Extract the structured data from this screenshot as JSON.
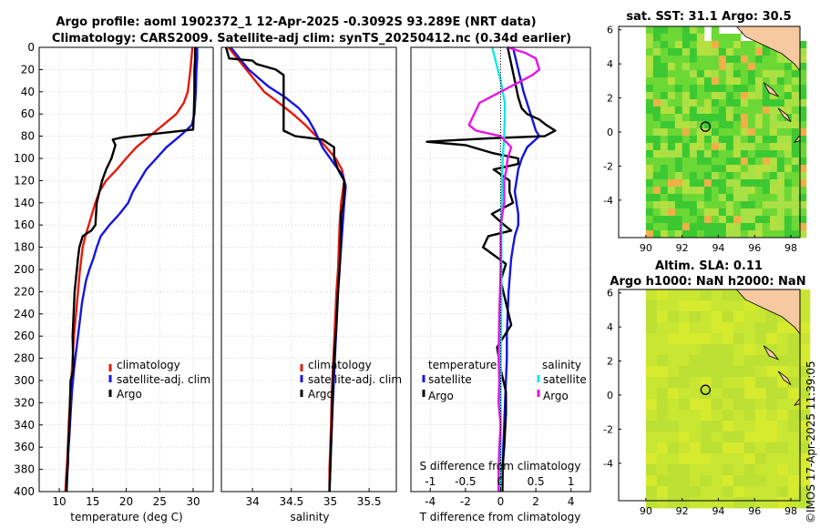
{
  "figure": {
    "title_line1": "Argo profile: aoml 1902372_1 12-Apr-2025 -0.3092S 93.289E (NRT data)",
    "title_line2": "Climatology: CARS2009. Satellite-adj clim: synTS_20250412.nc (0.34d earlier)",
    "credit": "©IMOS 17-Apr-2025 11:39:05"
  },
  "colors": {
    "climatology": "#e8190a",
    "satellite": "#1414e0",
    "argo": "#000000",
    "s_satellite": "#14e6e6",
    "s_argo": "#e614e6",
    "land": "#f7c9a0"
  },
  "chart_data": [
    {
      "type": "line",
      "id": "temperature",
      "xlabel": "temperature (deg C)",
      "ylabel": "",
      "xlim": [
        7,
        33
      ],
      "ylim": [
        400,
        0
      ],
      "xticks": [
        "10",
        "15",
        "20",
        "25",
        "30"
      ],
      "xtick_values": [
        10,
        15,
        20,
        25,
        30
      ],
      "yticks": [
        "0",
        "20",
        "40",
        "60",
        "80",
        "100",
        "120",
        "140",
        "160",
        "180",
        "200",
        "220",
        "240",
        "260",
        "280",
        "300",
        "320",
        "340",
        "360",
        "380",
        "400"
      ],
      "legend": [
        "climatology",
        "satellite-adj. clim",
        "Argo"
      ],
      "series": [
        {
          "name": "climatology",
          "color_key": "climatology",
          "x": [
            29.9,
            29.6,
            29.2,
            28.6,
            27.5,
            25.5,
            23.5,
            21.5,
            20.0,
            18.6,
            17.0,
            16.0,
            15.4,
            14.9,
            14.4,
            13.9,
            13.5,
            13.1,
            12.8,
            12.5,
            12.2,
            12.0,
            11.8,
            11.6,
            11.4,
            11.3,
            11.2,
            11.1,
            11.0,
            10.9
          ],
          "depth": [
            0,
            20,
            40,
            50,
            60,
            70,
            80,
            90,
            100,
            110,
            120,
            130,
            140,
            150,
            160,
            170,
            180,
            200,
            220,
            240,
            260,
            280,
            300,
            320,
            340,
            360,
            370,
            380,
            390,
            400
          ]
        },
        {
          "name": "satellite-adj. clim",
          "color_key": "satellite",
          "x": [
            30.6,
            30.6,
            30.5,
            30.4,
            30.2,
            29.8,
            28.0,
            26.0,
            24.5,
            23.0,
            22.0,
            21.0,
            20.3,
            19.0,
            17.5,
            16.2,
            15.6,
            15.1,
            14.5,
            14.0,
            13.4,
            13.0,
            12.6,
            12.2,
            11.9,
            11.7,
            11.5,
            11.3,
            11.2,
            11.1
          ],
          "depth": [
            0,
            10,
            20,
            40,
            60,
            70,
            80,
            90,
            100,
            110,
            120,
            130,
            140,
            150,
            160,
            170,
            180,
            190,
            200,
            210,
            230,
            250,
            270,
            290,
            310,
            330,
            350,
            370,
            385,
            400
          ]
        },
        {
          "name": "Argo",
          "color_key": "argo",
          "x": [
            30.3,
            30.3,
            30.2,
            30.2,
            30.1,
            30.0,
            24.0,
            19.5,
            18.0,
            18.4,
            17.8,
            17.0,
            16.4,
            15.6,
            15.4,
            14.8,
            13.5,
            13.0,
            12.8,
            12.3,
            12.0,
            12.1,
            11.7,
            11.6,
            11.5,
            11.3,
            11.3,
            11.1,
            11.1
          ],
          "depth": [
            0,
            10,
            20,
            40,
            60,
            74,
            78,
            81,
            83,
            88,
            100,
            110,
            120,
            140,
            160,
            165,
            170,
            180,
            190,
            220,
            260,
            290,
            300,
            320,
            345,
            360,
            375,
            390,
            400
          ]
        }
      ]
    },
    {
      "type": "line",
      "id": "salinity",
      "xlabel": "salinity",
      "ylabel": "",
      "xlim": [
        33.6,
        35.85
      ],
      "ylim": [
        400,
        0
      ],
      "xticks": [
        "34",
        "34.5",
        "35",
        "35.5"
      ],
      "xtick_values": [
        34,
        34.5,
        35,
        35.5
      ],
      "legend": [
        "climatology",
        "satellite-adj. clim",
        "Argo"
      ],
      "series": [
        {
          "name": "climatology",
          "color_key": "climatology",
          "x": [
            33.69,
            33.92,
            34.15,
            34.34,
            34.52,
            34.68,
            34.82,
            34.95,
            35.07,
            35.15,
            35.18,
            35.16,
            35.14,
            35.12,
            35.11,
            35.1,
            35.08,
            35.06,
            35.04,
            35.02,
            35.01,
            35.0,
            34.99,
            34.99
          ],
          "depth": [
            0,
            20,
            40,
            50,
            60,
            70,
            80,
            90,
            100,
            110,
            120,
            130,
            140,
            160,
            180,
            200,
            220,
            250,
            280,
            310,
            340,
            360,
            380,
            400
          ]
        },
        {
          "name": "satellite-adj. clim",
          "color_key": "satellite",
          "x": [
            33.72,
            33.95,
            34.2,
            34.42,
            34.6,
            34.72,
            34.8,
            34.9,
            35.05,
            35.16,
            35.2,
            35.18,
            35.16,
            35.14,
            35.12,
            35.1,
            35.08,
            35.06,
            35.04,
            35.02,
            35.01,
            35.0,
            34.99
          ],
          "depth": [
            0,
            20,
            35,
            45,
            55,
            65,
            75,
            90,
            105,
            115,
            125,
            140,
            160,
            180,
            200,
            220,
            250,
            280,
            310,
            340,
            360,
            380,
            400
          ]
        },
        {
          "name": "Argo",
          "color_key": "argo",
          "x": [
            33.66,
            33.7,
            34.0,
            34.05,
            34.3,
            34.4,
            34.4,
            34.4,
            34.4,
            34.55,
            34.9,
            35.05,
            35.05,
            35.1,
            35.18,
            35.18,
            35.17,
            35.14,
            35.14,
            35.13,
            35.12,
            35.1,
            35.08,
            35.05,
            35.03,
            35.02,
            35.01,
            35.0,
            34.99
          ],
          "depth": [
            0,
            10,
            12,
            15,
            20,
            25,
            40,
            60,
            75,
            80,
            83,
            90,
            100,
            110,
            120,
            125,
            140,
            150,
            160,
            180,
            200,
            220,
            250,
            280,
            310,
            340,
            360,
            380,
            400
          ]
        }
      ]
    },
    {
      "type": "line",
      "id": "difference",
      "xlabel": "T difference from climatology",
      "xlabel_top": "S difference from climatology",
      "xlim": [
        -5.1,
        5.1
      ],
      "ylim": [
        400,
        0
      ],
      "xticks": [
        "-4",
        "-2",
        "0",
        "2",
        "4"
      ],
      "xtick_values": [
        -4,
        -2,
        0,
        2,
        4
      ],
      "xticks_top": [
        "-1",
        "-0.5",
        "0",
        "0.5",
        "1"
      ],
      "xtick_top_values": [
        -1,
        -0.5,
        0,
        0.5,
        1
      ],
      "s_scale": 4,
      "legend_left_title": "temperature",
      "legend_left": [
        "satellite",
        "Argo"
      ],
      "legend_right_title": "salinity",
      "legend_right": [
        "satellite",
        "Argo"
      ],
      "series": [
        {
          "name": "T satellite",
          "color_key": "satellite",
          "x": [
            0.7,
            1.0,
            1.3,
            1.6,
            1.8,
            2.0,
            2.2,
            1.5,
            1.2,
            1.0,
            0.9,
            0.8,
            0.9,
            1.0,
            1.0,
            0.8,
            0.7,
            0.6,
            0.55,
            0.5,
            0.45,
            0.4,
            0.35,
            0.35,
            0.3,
            0.25,
            0.2,
            0.15,
            0.12,
            0.1
          ],
          "depth": [
            0,
            20,
            40,
            55,
            65,
            75,
            80,
            90,
            100,
            110,
            120,
            130,
            140,
            150,
            160,
            170,
            180,
            190,
            200,
            210,
            220,
            240,
            260,
            280,
            300,
            320,
            340,
            360,
            380,
            400
          ]
        },
        {
          "name": "T Argo",
          "color_key": "argo",
          "x": [
            0.4,
            0.6,
            0.8,
            1.0,
            1.2,
            1.5,
            2.2,
            2.6,
            3.1,
            2.5,
            -0.7,
            -4.2,
            -2.0,
            -0.5,
            1.0,
            1.0,
            -0.4,
            0.5,
            0.5,
            0.7,
            -0.5,
            0.2,
            0.6,
            -0.7,
            -1.0,
            0.3,
            0.0,
            0.3,
            0.6,
            -0.2,
            0.0,
            0.3,
            0.3,
            0.2,
            0.1,
            0.1
          ],
          "depth": [
            0,
            15,
            30,
            45,
            55,
            60,
            65,
            70,
            75,
            80,
            82,
            85,
            88,
            95,
            100,
            105,
            110,
            120,
            130,
            140,
            150,
            160,
            165,
            170,
            180,
            195,
            210,
            230,
            250,
            270,
            290,
            310,
            330,
            360,
            380,
            400
          ]
        },
        {
          "name": "S satellite",
          "color_key": "s_satellite",
          "x": [
            -0.12,
            -0.08,
            -0.04,
            0.0,
            0.03,
            0.06,
            0.06,
            0.05,
            0.03,
            0.02,
            0.01,
            0.01,
            0.0,
            0.0
          ],
          "depth": [
            0,
            10,
            20,
            30,
            40,
            50,
            60,
            80,
            100,
            120,
            160,
            220,
            300,
            400
          ]
        },
        {
          "name": "S Argo",
          "color_key": "s_argo",
          "x": [
            0.1,
            0.35,
            0.5,
            0.55,
            0.45,
            0.3,
            0.15,
            0.0,
            -0.15,
            -0.3,
            -0.45,
            -0.35,
            0.0,
            0.15,
            0.1,
            0.08,
            0.05,
            0.05,
            0.0,
            0.0,
            -0.02,
            -0.03,
            -0.02,
            -0.03,
            0.0,
            -0.02,
            -0.03,
            -0.03
          ],
          "depth": [
            0,
            5,
            10,
            20,
            25,
            30,
            35,
            40,
            45,
            50,
            70,
            75,
            80,
            90,
            100,
            110,
            120,
            140,
            160,
            200,
            240,
            280,
            300,
            320,
            340,
            360,
            380,
            400
          ]
        }
      ]
    },
    {
      "type": "heatmap",
      "id": "sst_map",
      "title": "sat. SST: 31.1 Argo: 30.5",
      "xlim": [
        88.5,
        98.5
      ],
      "ylim": [
        -6.2,
        6.2
      ],
      "xticks": [
        "90",
        "92",
        "94",
        "96",
        "98"
      ],
      "xtick_values": [
        90,
        92,
        94,
        96,
        98
      ],
      "yticks": [
        "6",
        "4",
        "2",
        "0",
        "-2",
        "-4"
      ],
      "ytick_values": [
        6,
        4,
        2,
        0,
        -2,
        -4
      ],
      "data_extent": {
        "lon": [
          90,
          98.5
        ],
        "lat": [
          -6.2,
          6.2
        ]
      },
      "marker": {
        "lon": 93.29,
        "lat": 0.31
      }
    },
    {
      "type": "heatmap",
      "id": "sla_map",
      "title_line1": "Altim. SLA: 0.11",
      "title_line2": "Argo h1000: NaN h2000: NaN",
      "xlim": [
        88.5,
        98.5
      ],
      "ylim": [
        -6.2,
        6.2
      ],
      "xticks": [
        "90",
        "92",
        "94",
        "96",
        "98"
      ],
      "xtick_values": [
        90,
        92,
        94,
        96,
        98
      ],
      "yticks": [
        "6",
        "4",
        "2",
        "0",
        "-2",
        "-4"
      ],
      "ytick_values": [
        6,
        4,
        2,
        0,
        -2,
        -4
      ],
      "data_extent": {
        "lon": [
          90,
          98.5
        ],
        "lat": [
          -6.2,
          6.2
        ]
      },
      "marker": {
        "lon": 93.29,
        "lat": 0.31
      }
    }
  ]
}
